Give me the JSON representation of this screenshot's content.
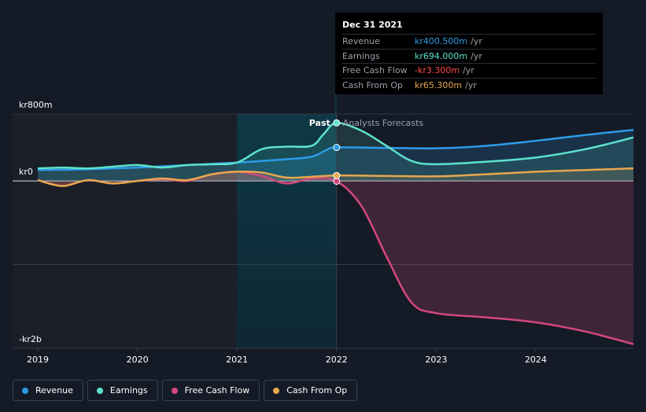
{
  "chart_data": {
    "type": "line",
    "title": "",
    "y_tick_labels": [
      "kr800m",
      "kr0",
      "-kr2b"
    ],
    "x_tick_labels": [
      "2019",
      "2020",
      "2021",
      "2022",
      "2023",
      "2024"
    ],
    "ylim": [
      -2000,
      800
    ],
    "xlim": [
      2019.0,
      2024.98
    ],
    "past_label": "Past",
    "forecast_label": "Analysts Forecasts",
    "divider_x": 2022.0,
    "highlight_range": [
      2021.0,
      2022.0
    ],
    "series": [
      {
        "name": "Revenue",
        "color": "#2e9be8",
        "x": [
          2019.0,
          2019.5,
          2020.0,
          2020.5,
          2021.0,
          2021.5,
          2021.75,
          2021.9,
          2022.0,
          2022.5,
          2023.0,
          2023.5,
          2024.0,
          2024.5,
          2024.98
        ],
        "y": [
          130,
          140,
          160,
          190,
          220,
          260,
          290,
          370,
          400.5,
          395,
          390,
          420,
          480,
          550,
          610
        ]
      },
      {
        "name": "Earnings",
        "color": "#5de2cc",
        "x": [
          2019.0,
          2019.25,
          2019.5,
          2019.75,
          2020.0,
          2020.25,
          2020.5,
          2020.75,
          2021.0,
          2021.25,
          2021.5,
          2021.75,
          2021.87,
          2022.0,
          2022.25,
          2022.5,
          2022.75,
          2023.0,
          2023.5,
          2024.0,
          2024.5,
          2024.98
        ],
        "y": [
          150,
          160,
          150,
          170,
          190,
          160,
          190,
          200,
          220,
          380,
          410,
          420,
          560,
          694,
          600,
          420,
          240,
          200,
          230,
          280,
          380,
          520
        ]
      },
      {
        "name": "Free Cash Flow",
        "color": "#d4477e",
        "x": [
          2019.0,
          2019.25,
          2019.5,
          2019.75,
          2020.0,
          2020.25,
          2020.5,
          2020.75,
          2021.0,
          2021.25,
          2021.5,
          2021.75,
          2022.0,
          2022.25,
          2022.5,
          2022.75,
          2023.0,
          2023.5,
          2024.0,
          2024.5,
          2024.98
        ],
        "y": [
          10,
          -60,
          10,
          -30,
          0,
          20,
          0,
          80,
          110,
          60,
          -30,
          30,
          -3.3,
          -300,
          -900,
          -1450,
          -1580,
          -1630,
          -1690,
          -1800,
          -1950
        ]
      },
      {
        "name": "Cash From Op",
        "color": "#e8a74e",
        "x": [
          2019.0,
          2019.25,
          2019.5,
          2019.75,
          2020.0,
          2020.25,
          2020.5,
          2020.75,
          2021.0,
          2021.25,
          2021.5,
          2021.75,
          2022.0,
          2022.5,
          2023.0,
          2023.5,
          2024.0,
          2024.5,
          2024.98
        ],
        "y": [
          10,
          -60,
          10,
          -30,
          0,
          30,
          10,
          80,
          110,
          100,
          40,
          50,
          65.3,
          60,
          55,
          80,
          110,
          130,
          150
        ]
      }
    ],
    "marker_x": 2022.0
  },
  "tooltip": {
    "date": "Dec 31 2021",
    "rows": [
      {
        "name": "Revenue",
        "value": "kr400.500m",
        "unit": "/yr",
        "color": "#2e9be8"
      },
      {
        "name": "Earnings",
        "value": "kr694.000m",
        "unit": "/yr",
        "color": "#5de2cc"
      },
      {
        "name": "Free Cash Flow",
        "value": "-kr3.300m",
        "unit": "/yr",
        "color": "#ff4d4d"
      },
      {
        "name": "Cash From Op",
        "value": "kr65.300m",
        "unit": "/yr",
        "color": "#e8a74e"
      }
    ]
  },
  "legend": [
    {
      "label": "Revenue",
      "color": "#2e9be8"
    },
    {
      "label": "Earnings",
      "color": "#5de2cc"
    },
    {
      "label": "Free Cash Flow",
      "color": "#d4477e"
    },
    {
      "label": "Cash From Op",
      "color": "#e8a74e"
    }
  ]
}
